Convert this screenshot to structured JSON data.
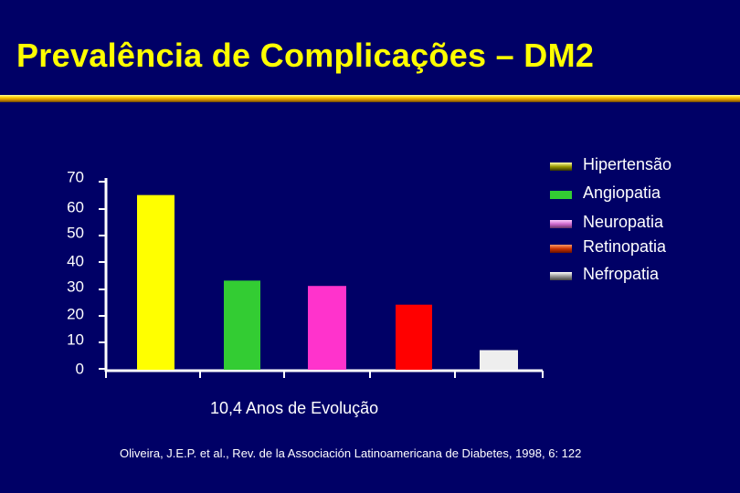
{
  "slide": {
    "title": "Prevalência de Complicações – DM2",
    "source": "Oliveira, J.E.P. et al., Rev. de la Associación Latinoamericana de Diabetes, 1998, 6: 122"
  },
  "chart_data": {
    "type": "bar",
    "title": "",
    "xlabel": "10,4 Anos de Evolução",
    "ylabel": "",
    "ylim": [
      0,
      70
    ],
    "yticks": [
      "0",
      "10",
      "20",
      "30",
      "40",
      "50",
      "60",
      "70"
    ],
    "categories": [
      "Hipertensão",
      "Angiopatia",
      "Neuropatia",
      "Retinopatia",
      "Nefropatia"
    ],
    "values": [
      65,
      33,
      31,
      24,
      7
    ],
    "colors": [
      "#ffff00",
      "#33cc33",
      "#ff33cc",
      "#ff0000",
      "#eeeeee"
    ],
    "legend": {
      "position": "top-right",
      "swatches": [
        "linear-gradient(#ffffaa,#999900 50%,#333300)",
        "#33cc33",
        "linear-gradient(#ffccff,#cc66cc 50%,#663366)",
        "linear-gradient(#ff9966,#cc3300 50%,#661100)",
        "linear-gradient(#ffffff,#999999 50%,#444444)"
      ]
    },
    "grid": false
  }
}
